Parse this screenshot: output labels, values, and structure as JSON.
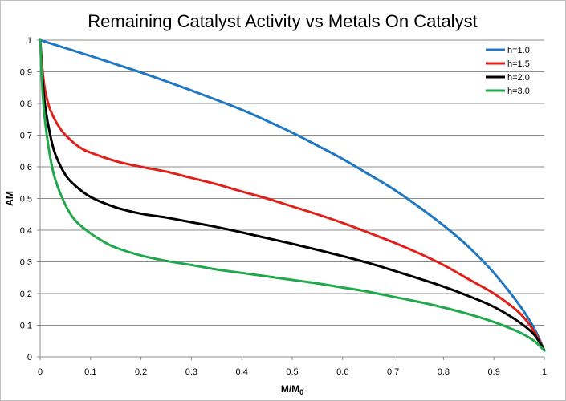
{
  "chart_data": {
    "type": "line",
    "title": "Remaining Catalyst Activity vs Metals On Catalyst",
    "xlabel_main": "M/M",
    "xlabel_sub": "0",
    "ylabel": "AM",
    "xlim": [
      0,
      1
    ],
    "ylim": [
      0,
      1
    ],
    "x_ticks": [
      "0",
      "0.1",
      "0.2",
      "0.3",
      "0.4",
      "0.5",
      "0.6",
      "0.7",
      "0.8",
      "0.9",
      "1"
    ],
    "y_ticks": [
      "0",
      "0.1",
      "0.2",
      "0.3",
      "0.4",
      "0.5",
      "0.6",
      "0.7",
      "0.8",
      "0.9",
      "1"
    ],
    "grid": "horizontal",
    "legend_position": "top-right",
    "series": [
      {
        "name": "h=1.0",
        "color": "#1f78c1",
        "points": [
          [
            0,
            1.0
          ],
          [
            0.05,
            0.975
          ],
          [
            0.1,
            0.95
          ],
          [
            0.15,
            0.924
          ],
          [
            0.2,
            0.898
          ],
          [
            0.25,
            0.87
          ],
          [
            0.3,
            0.841
          ],
          [
            0.35,
            0.811
          ],
          [
            0.4,
            0.78
          ],
          [
            0.45,
            0.745
          ],
          [
            0.5,
            0.708
          ],
          [
            0.55,
            0.667
          ],
          [
            0.6,
            0.625
          ],
          [
            0.65,
            0.578
          ],
          [
            0.7,
            0.53
          ],
          [
            0.75,
            0.475
          ],
          [
            0.8,
            0.415
          ],
          [
            0.85,
            0.347
          ],
          [
            0.9,
            0.265
          ],
          [
            0.95,
            0.165
          ],
          [
            0.98,
            0.09
          ],
          [
            1.0,
            0.02
          ]
        ]
      },
      {
        "name": "h=1.5",
        "color": "#e0211b",
        "points": [
          [
            0,
            1.0
          ],
          [
            0.005,
            0.9
          ],
          [
            0.01,
            0.84
          ],
          [
            0.02,
            0.78
          ],
          [
            0.04,
            0.72
          ],
          [
            0.06,
            0.685
          ],
          [
            0.08,
            0.66
          ],
          [
            0.1,
            0.645
          ],
          [
            0.15,
            0.618
          ],
          [
            0.2,
            0.6
          ],
          [
            0.25,
            0.585
          ],
          [
            0.3,
            0.565
          ],
          [
            0.35,
            0.545
          ],
          [
            0.4,
            0.522
          ],
          [
            0.45,
            0.5
          ],
          [
            0.5,
            0.475
          ],
          [
            0.55,
            0.45
          ],
          [
            0.6,
            0.423
          ],
          [
            0.65,
            0.393
          ],
          [
            0.7,
            0.362
          ],
          [
            0.75,
            0.328
          ],
          [
            0.8,
            0.29
          ],
          [
            0.85,
            0.245
          ],
          [
            0.9,
            0.2
          ],
          [
            0.95,
            0.14
          ],
          [
            0.98,
            0.08
          ],
          [
            1.0,
            0.02
          ]
        ]
      },
      {
        "name": "h=2.0",
        "color": "#000000",
        "points": [
          [
            0,
            1.0
          ],
          [
            0.005,
            0.87
          ],
          [
            0.01,
            0.79
          ],
          [
            0.02,
            0.7
          ],
          [
            0.03,
            0.64
          ],
          [
            0.05,
            0.575
          ],
          [
            0.07,
            0.54
          ],
          [
            0.1,
            0.505
          ],
          [
            0.15,
            0.472
          ],
          [
            0.2,
            0.452
          ],
          [
            0.25,
            0.44
          ],
          [
            0.3,
            0.425
          ],
          [
            0.35,
            0.41
          ],
          [
            0.4,
            0.393
          ],
          [
            0.45,
            0.375
          ],
          [
            0.5,
            0.357
          ],
          [
            0.55,
            0.338
          ],
          [
            0.6,
            0.318
          ],
          [
            0.65,
            0.297
          ],
          [
            0.7,
            0.273
          ],
          [
            0.75,
            0.248
          ],
          [
            0.8,
            0.222
          ],
          [
            0.85,
            0.192
          ],
          [
            0.9,
            0.158
          ],
          [
            0.95,
            0.11
          ],
          [
            0.98,
            0.07
          ],
          [
            1.0,
            0.02
          ]
        ]
      },
      {
        "name": "h=3.0",
        "color": "#21a84d",
        "points": [
          [
            0,
            1.0
          ],
          [
            0.005,
            0.83
          ],
          [
            0.01,
            0.74
          ],
          [
            0.02,
            0.63
          ],
          [
            0.03,
            0.56
          ],
          [
            0.05,
            0.48
          ],
          [
            0.07,
            0.43
          ],
          [
            0.1,
            0.39
          ],
          [
            0.13,
            0.36
          ],
          [
            0.15,
            0.345
          ],
          [
            0.2,
            0.32
          ],
          [
            0.25,
            0.303
          ],
          [
            0.3,
            0.29
          ],
          [
            0.35,
            0.276
          ],
          [
            0.4,
            0.265
          ],
          [
            0.45,
            0.254
          ],
          [
            0.5,
            0.243
          ],
          [
            0.55,
            0.232
          ],
          [
            0.6,
            0.219
          ],
          [
            0.65,
            0.206
          ],
          [
            0.7,
            0.19
          ],
          [
            0.75,
            0.174
          ],
          [
            0.8,
            0.156
          ],
          [
            0.85,
            0.135
          ],
          [
            0.9,
            0.11
          ],
          [
            0.95,
            0.078
          ],
          [
            0.98,
            0.05
          ],
          [
            1.0,
            0.02
          ]
        ]
      }
    ]
  }
}
